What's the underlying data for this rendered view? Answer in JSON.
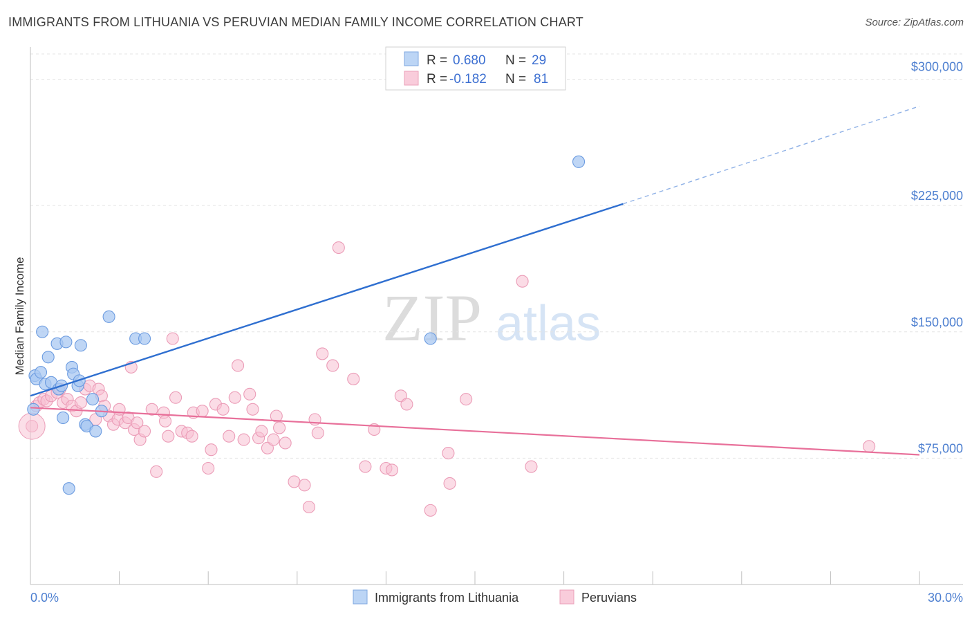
{
  "title": "IMMIGRANTS FROM LITHUANIA VS PERUVIAN MEDIAN FAMILY INCOME CORRELATION CHART",
  "source": "Source: ZipAtlas.com",
  "colors": {
    "blue": "#9fc3f0",
    "blue_line": "#2f6fd0",
    "pink": "#f5b8cc",
    "pink_line": "#e8709a",
    "tick_text": "#4d7fd0"
  },
  "legend": {
    "rows": [
      {
        "r_label": "R =",
        "r_value": "0.680",
        "n_label": "N =",
        "n_value": "29"
      },
      {
        "r_label": "R =",
        "r_value": "-0.182",
        "n_label": "N =",
        "n_value": "81"
      }
    ]
  },
  "bottom_legend": [
    "Immigrants from Lithuania",
    "Peruvians"
  ],
  "watermark": {
    "zip": "ZIP",
    "atlas": "atlas"
  },
  "chart_data": {
    "type": "scatter",
    "xlabel": "",
    "ylabel": "Median Family Income",
    "xlim": [
      0,
      30
    ],
    "ylim": [
      0,
      315000
    ],
    "x_tick_labels": [
      "0.0%",
      "30.0%"
    ],
    "y_ticks": [
      75000,
      150000,
      225000,
      300000
    ],
    "y_tick_labels": [
      "$75,000",
      "$150,000",
      "$225,000",
      "$300,000"
    ],
    "grid": true,
    "legend_position": "top-center",
    "series": [
      {
        "name": "Immigrants from Lithuania",
        "trend": {
          "x": [
            0,
            20
          ],
          "y": [
            112000,
            226000
          ],
          "dashed_to": [
            30,
            284000
          ]
        },
        "points": [
          [
            0.1,
            104000
          ],
          [
            0.15,
            124000
          ],
          [
            0.2,
            122000
          ],
          [
            0.35,
            126000
          ],
          [
            0.4,
            150000
          ],
          [
            0.5,
            119000
          ],
          [
            0.6,
            135000
          ],
          [
            0.7,
            120000
          ],
          [
            0.9,
            143000
          ],
          [
            0.95,
            116000
          ],
          [
            1.05,
            118000
          ],
          [
            1.1,
            99000
          ],
          [
            1.2,
            144000
          ],
          [
            1.3,
            57000
          ],
          [
            1.4,
            129000
          ],
          [
            1.45,
            125000
          ],
          [
            1.6,
            118000
          ],
          [
            1.65,
            121000
          ],
          [
            1.7,
            142000
          ],
          [
            1.85,
            95000
          ],
          [
            1.9,
            94000
          ],
          [
            2.1,
            110000
          ],
          [
            2.2,
            91000
          ],
          [
            2.4,
            103000
          ],
          [
            2.65,
            159000
          ],
          [
            3.55,
            146000
          ],
          [
            3.85,
            146000
          ],
          [
            13.5,
            146000
          ],
          [
            18.5,
            251000
          ]
        ]
      },
      {
        "name": "Peruvians",
        "trend": {
          "x": [
            0,
            30
          ],
          "y": [
            105000,
            77000
          ]
        },
        "points": [
          [
            0.05,
            94000
          ],
          [
            0.2,
            106000
          ],
          [
            0.3,
            108000
          ],
          [
            0.45,
            110000
          ],
          [
            0.55,
            109000
          ],
          [
            0.7,
            112000
          ],
          [
            0.9,
            114000
          ],
          [
            1.0,
            116000
          ],
          [
            1.1,
            108000
          ],
          [
            1.25,
            110000
          ],
          [
            1.4,
            106000
          ],
          [
            1.55,
            103000
          ],
          [
            1.7,
            108000
          ],
          [
            1.85,
            116000
          ],
          [
            2.0,
            118000
          ],
          [
            2.2,
            98000
          ],
          [
            2.3,
            116000
          ],
          [
            2.4,
            112000
          ],
          [
            2.5,
            106000
          ],
          [
            2.65,
            100000
          ],
          [
            2.8,
            95000
          ],
          [
            2.95,
            98000
          ],
          [
            3.0,
            104000
          ],
          [
            3.2,
            96000
          ],
          [
            3.3,
            99000
          ],
          [
            3.4,
            129000
          ],
          [
            3.5,
            92000
          ],
          [
            3.6,
            96000
          ],
          [
            3.7,
            86000
          ],
          [
            3.85,
            91000
          ],
          [
            4.1,
            104000
          ],
          [
            4.25,
            67000
          ],
          [
            4.5,
            102000
          ],
          [
            4.55,
            97000
          ],
          [
            4.65,
            88000
          ],
          [
            4.8,
            146000
          ],
          [
            4.9,
            111000
          ],
          [
            5.1,
            91000
          ],
          [
            5.3,
            90000
          ],
          [
            5.45,
            88000
          ],
          [
            5.5,
            102000
          ],
          [
            5.8,
            103000
          ],
          [
            6.0,
            69000
          ],
          [
            6.1,
            80000
          ],
          [
            6.25,
            107000
          ],
          [
            6.5,
            104000
          ],
          [
            6.7,
            88000
          ],
          [
            6.9,
            111000
          ],
          [
            7.0,
            130000
          ],
          [
            7.2,
            86000
          ],
          [
            7.4,
            113000
          ],
          [
            7.5,
            104000
          ],
          [
            7.7,
            87000
          ],
          [
            7.8,
            91000
          ],
          [
            8.0,
            81000
          ],
          [
            8.2,
            86000
          ],
          [
            8.3,
            100000
          ],
          [
            8.4,
            93000
          ],
          [
            8.6,
            84000
          ],
          [
            8.9,
            61000
          ],
          [
            9.25,
            59000
          ],
          [
            9.4,
            46000
          ],
          [
            9.6,
            98000
          ],
          [
            9.7,
            90000
          ],
          [
            9.85,
            137000
          ],
          [
            10.2,
            130000
          ],
          [
            10.4,
            200000
          ],
          [
            10.9,
            122000
          ],
          [
            11.3,
            70000
          ],
          [
            11.6,
            92000
          ],
          [
            12.0,
            69000
          ],
          [
            12.2,
            68000
          ],
          [
            12.5,
            112000
          ],
          [
            12.7,
            107000
          ],
          [
            13.5,
            44000
          ],
          [
            14.1,
            78000
          ],
          [
            14.15,
            60000
          ],
          [
            14.7,
            110000
          ],
          [
            16.6,
            180000
          ],
          [
            16.9,
            70000
          ],
          [
            28.3,
            82000
          ]
        ]
      }
    ]
  }
}
